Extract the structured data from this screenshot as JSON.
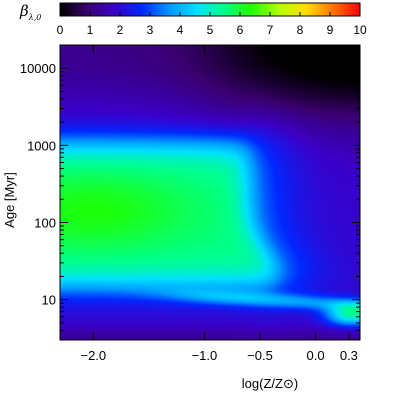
{
  "chart_data": {
    "type": "heatmap",
    "colorbar": {
      "title": "β",
      "title_subscript": "λ,0",
      "range": [
        0,
        10
      ],
      "ticks": [
        "0",
        "1",
        "2",
        "3",
        "4",
        "5",
        "6",
        "7",
        "8",
        "9",
        "10"
      ],
      "colormap": [
        "#000000",
        "#3a0070",
        "#3a00c8",
        "#0028ff",
        "#0096ff",
        "#00e0ff",
        "#00ff8c",
        "#20ff00",
        "#b0ff00",
        "#ffe000",
        "#ff7800",
        "#ff0000"
      ]
    },
    "x_axis": {
      "label": "log(Z/Z⊙)",
      "range": [
        -2.3,
        0.4
      ],
      "ticks": [
        {
          "value": -2.0,
          "label": "−2.0"
        },
        {
          "value": -1.0,
          "label": "−1.0"
        },
        {
          "value": -0.5,
          "label": "−0.5"
        },
        {
          "value": 0.0,
          "label": "0.0"
        },
        {
          "value": 0.3,
          "label": "0.3"
        }
      ]
    },
    "y_axis": {
      "label": "Age [Myr]",
      "scale": "log",
      "range": [
        3,
        20000
      ],
      "ticks": [
        {
          "value": 10,
          "label": "10"
        },
        {
          "value": 100,
          "label": "100"
        },
        {
          "value": 1000,
          "label": "1000"
        },
        {
          "value": 10000,
          "label": "10000"
        }
      ]
    },
    "features": [
      {
        "region": "low metallicity, age 30–1000 Myr",
        "beta_approx": 5.5
      },
      {
        "region": "peak near log Z = -2.0, age 150 Myr",
        "beta_approx": 6.0
      },
      {
        "region": "transition near log Z = -0.5",
        "beta_approx": 3.5
      },
      {
        "region": "band near age 10 Myr",
        "beta_approx": 3.5
      },
      {
        "region": "high metallicity, age 6 Myr",
        "beta_approx": 5.0
      },
      {
        "region": "age > 3000 Myr, log Z > -0.5",
        "beta_approx": 0.5
      },
      {
        "region": "age < 5 Myr",
        "beta_approx": 1.5
      }
    ]
  }
}
